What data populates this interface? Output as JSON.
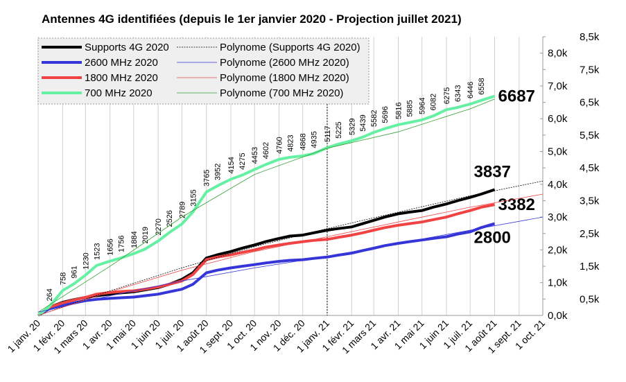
{
  "chart_data": {
    "type": "line",
    "title": "Antennes 4G identifiées (depuis le 1er janvier 2020 - Projection juillet 2021)",
    "x": [
      "2020-01-01",
      "2020-01-15",
      "2020-02-01",
      "2020-02-15",
      "2020-03-01",
      "2020-03-15",
      "2020-04-01",
      "2020-04-15",
      "2020-05-01",
      "2020-05-15",
      "2020-06-01",
      "2020-06-15",
      "2020-07-01",
      "2020-07-15",
      "2020-08-01",
      "2020-08-15",
      "2020-09-01",
      "2020-09-15",
      "2020-10-01",
      "2020-10-15",
      "2020-11-01",
      "2020-11-15",
      "2020-12-01",
      "2020-12-15",
      "2021-01-01",
      "2021-01-15",
      "2021-02-01",
      "2021-02-15",
      "2021-03-01",
      "2021-03-15",
      "2021-04-01",
      "2021-04-15",
      "2021-05-01",
      "2021-05-15",
      "2021-06-01",
      "2021-06-15",
      "2021-07-01",
      "2021-07-15",
      "2021-08-01"
    ],
    "series": [
      {
        "name": "Supports 4G 2020",
        "color": "#000000",
        "width": 4,
        "label_color": "#000000",
        "values": [
          0,
          250,
          400,
          480,
          550,
          600,
          650,
          690,
          720,
          780,
          850,
          950,
          1100,
          1300,
          1750,
          1850,
          1950,
          2050,
          2150,
          2250,
          2350,
          2420,
          2450,
          2520,
          2600,
          2650,
          2700,
          2800,
          2900,
          3000,
          3100,
          3150,
          3200,
          3300,
          3400,
          3500,
          3600,
          3700,
          3837
        ]
      },
      {
        "name": "2600 MHz 2020",
        "color": "#3535d8",
        "width": 4,
        "label_color": "#3040c8",
        "values": [
          0,
          200,
          300,
          380,
          450,
          490,
          520,
          540,
          560,
          600,
          650,
          720,
          800,
          950,
          1300,
          1380,
          1450,
          1500,
          1550,
          1600,
          1650,
          1680,
          1700,
          1740,
          1780,
          1840,
          1900,
          1980,
          2050,
          2130,
          2200,
          2250,
          2300,
          2350,
          2400,
          2480,
          2550,
          2680,
          2800
        ]
      },
      {
        "name": "1800 MHz 2020",
        "color": "#f04444",
        "width": 4,
        "label_color": "#f04848",
        "values": [
          0,
          250,
          380,
          470,
          550,
          650,
          700,
          730,
          750,
          800,
          870,
          950,
          1050,
          1250,
          1700,
          1780,
          1850,
          1920,
          2000,
          2080,
          2150,
          2200,
          2250,
          2290,
          2320,
          2380,
          2450,
          2520,
          2600,
          2680,
          2750,
          2800,
          2850,
          2920,
          3000,
          3100,
          3200,
          3300,
          3382
        ]
      },
      {
        "name": "700 MHz 2020",
        "color": "#66f0a4",
        "width": 4,
        "label_color": "#2e9a2e",
        "data_labels": true,
        "values": [
          0,
          264,
          758,
          961,
          1230,
          1523,
          1656,
          1756,
          1884,
          2019,
          2270,
          2526,
          2789,
          3155,
          3765,
          3952,
          4154,
          4275,
          4453,
          4602,
          4760,
          4823,
          4868,
          4935,
          5117,
          5225,
          5329,
          5439,
          5582,
          5696,
          5816,
          5885,
          5964,
          6082,
          6275,
          6343,
          6446,
          6558,
          6687
        ]
      },
      {
        "name": "Polynome (Supports 4G 2020)",
        "color": "#000000",
        "width": 0.8,
        "dash": true,
        "x": [
          "2020-01-01",
          "2020-04-01",
          "2020-07-01",
          "2020-10-01",
          "2021-01-01",
          "2021-04-01",
          "2021-07-01",
          "2021-10-01"
        ],
        "values": [
          0,
          750,
          1450,
          2100,
          2650,
          3150,
          3650,
          4100
        ]
      },
      {
        "name": "Polynome (2600 MHz 2020)",
        "color": "#3535d8",
        "width": 0.8,
        "x": [
          "2020-01-01",
          "2020-04-01",
          "2020-07-01",
          "2020-10-01",
          "2021-01-01",
          "2021-04-01",
          "2021-07-01",
          "2021-10-01"
        ],
        "values": [
          100,
          600,
          1050,
          1450,
          1800,
          2200,
          2600,
          3000
        ]
      },
      {
        "name": "Polynome (1800 MHz 2020)",
        "color": "#f04444",
        "width": 0.8,
        "x": [
          "2020-01-01",
          "2020-04-01",
          "2020-07-01",
          "2020-10-01",
          "2021-01-01",
          "2021-04-01",
          "2021-07-01",
          "2021-10-01"
        ],
        "values": [
          0,
          720,
          1380,
          1950,
          2400,
          2850,
          3300,
          3700
        ]
      },
      {
        "name": "Polynome (700 MHz 2020)",
        "color": "#2ea02e",
        "width": 0.8,
        "x": [
          "2020-01-01",
          "2020-04-01",
          "2020-07-01",
          "2020-10-01",
          "2021-01-01",
          "2021-04-01",
          "2021-07-01",
          "2021-08-01"
        ],
        "values": [
          100,
          1500,
          3000,
          4300,
          5100,
          5600,
          6300,
          6600
        ]
      }
    ],
    "xlim": [
      "2020-01-01",
      "2021-10-01"
    ],
    "xticks": [
      {
        "value": "2020-01-01",
        "label": "1 janv. 20"
      },
      {
        "value": "2020-02-01",
        "label": "1 févr. 20"
      },
      {
        "value": "2020-03-01",
        "label": "1 mars 20"
      },
      {
        "value": "2020-04-01",
        "label": "1 avr. 20"
      },
      {
        "value": "2020-05-01",
        "label": "1 mai 20"
      },
      {
        "value": "2020-06-01",
        "label": "1 juin 20"
      },
      {
        "value": "2020-07-01",
        "label": "1 juil. 20"
      },
      {
        "value": "2020-08-01",
        "label": "1 août 20"
      },
      {
        "value": "2020-09-01",
        "label": "1 sept. 20"
      },
      {
        "value": "2020-10-01",
        "label": "1 oct. 20"
      },
      {
        "value": "2020-11-01",
        "label": "1 nov. 20"
      },
      {
        "value": "2020-12-01",
        "label": "1 déc. 20"
      },
      {
        "value": "2021-01-01",
        "label": "1 janv. 21"
      },
      {
        "value": "2021-02-01",
        "label": "1 févr. 21"
      },
      {
        "value": "2021-03-01",
        "label": "1 mars 21"
      },
      {
        "value": "2021-04-01",
        "label": "1 avr. 21"
      },
      {
        "value": "2021-05-01",
        "label": "1 mai 21"
      },
      {
        "value": "2021-06-01",
        "label": "1 juin 21"
      },
      {
        "value": "2021-07-01",
        "label": "1 juil. 21"
      },
      {
        "value": "2021-08-01",
        "label": "1 août 21"
      },
      {
        "value": "2021-09-01",
        "label": "1 sept. 21"
      },
      {
        "value": "2021-10-01",
        "label": "1 oct. 21"
      }
    ],
    "ylim": [
      0,
      8500
    ],
    "yticks": [
      {
        "value": 0,
        "label": "0,0k"
      },
      {
        "value": 1000,
        "label": "1,0k"
      },
      {
        "value": 2000,
        "label": "2,0k"
      },
      {
        "value": 3000,
        "label": "3,0k"
      },
      {
        "value": 4000,
        "label": "4,0k"
      },
      {
        "value": 5000,
        "label": "5,0k"
      },
      {
        "value": 6000,
        "label": "6,0k"
      },
      {
        "value": 7000,
        "label": "7,0k"
      },
      {
        "value": 8000,
        "label": "8,0k"
      }
    ],
    "y2lim": [
      0,
      8500
    ],
    "y2ticks": [
      {
        "value": 500,
        "label": "0,5k"
      },
      {
        "value": 1500,
        "label": "1,5k"
      },
      {
        "value": 2500,
        "label": "2,5k"
      },
      {
        "value": 3500,
        "label": "3,5k"
      },
      {
        "value": 4500,
        "label": "4,5k"
      },
      {
        "value": 5500,
        "label": "5,5k"
      },
      {
        "value": 6500,
        "label": "6,5k"
      },
      {
        "value": 7500,
        "label": "7,5k"
      },
      {
        "value": 8500,
        "label": "8,5k"
      }
    ],
    "grid": true,
    "vline": "2021-01-01",
    "legend": "top-left"
  }
}
